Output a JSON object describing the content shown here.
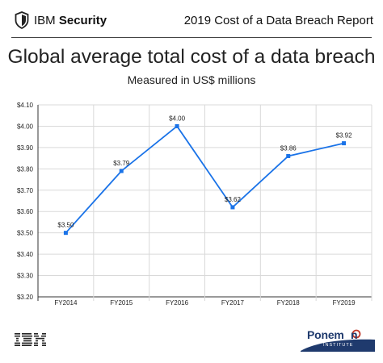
{
  "header": {
    "brand_ibm": "IBM",
    "brand_security": "Security",
    "report_title": "2019 Cost of a Data Breach Report"
  },
  "footer": {
    "left_logo": "IBM",
    "right_logo": "Ponemon",
    "right_logo_sub": "INSTITUTE"
  },
  "colors": {
    "line": "#1a73e8",
    "grid": "#d9d9d9",
    "axis": "#333333",
    "ponemon_blue": "#1f3a6d"
  },
  "chart_data": {
    "type": "line",
    "title": "Global average total cost of a data breach",
    "subtitle": "Measured in US$ millions",
    "categories": [
      "FY2014",
      "FY2015",
      "FY2016",
      "FY2017",
      "FY2018",
      "FY2019"
    ],
    "series": [
      {
        "values": [
          3.5,
          3.79,
          4.0,
          3.62,
          3.86,
          3.92
        ]
      }
    ],
    "data_labels": [
      "$3.50",
      "$3.79",
      "$4.00",
      "$3.62",
      "$3.86",
      "$3.92"
    ],
    "yticks": [
      "$3.20",
      "$3.30",
      "$3.40",
      "$3.50",
      "$3.60",
      "$3.70",
      "$3.80",
      "$3.90",
      "$4.00",
      "$4.10"
    ],
    "ylim": [
      3.2,
      4.1
    ],
    "grid": true,
    "legend": "none"
  }
}
